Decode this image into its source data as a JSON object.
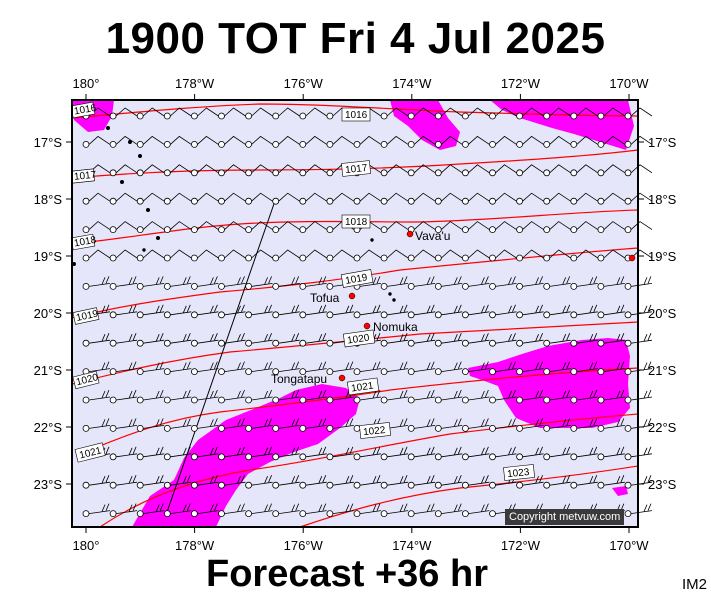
{
  "header": {
    "title": "1900 TOT Fri 4 Jul 2025"
  },
  "footer": {
    "forecast": "Forecast +36 hr",
    "image_code": "IM2",
    "copyright": "Copyright metvuw.com"
  },
  "map": {
    "x_ticks": [
      {
        "lon": 180,
        "label": "180°"
      },
      {
        "lon": 178,
        "label": "178°W"
      },
      {
        "lon": 176,
        "label": "176°W"
      },
      {
        "lon": 174,
        "label": "174°W"
      },
      {
        "lon": 172,
        "label": "172°W"
      },
      {
        "lon": 170,
        "label": "170°W"
      }
    ],
    "y_ticks": [
      {
        "lat": 17,
        "label": "17°S"
      },
      {
        "lat": 18,
        "label": "18°S"
      },
      {
        "lat": 19,
        "label": "19°S"
      },
      {
        "lat": 20,
        "label": "20°S"
      },
      {
        "lat": 21,
        "label": "21°S"
      },
      {
        "lat": 22,
        "label": "22°S"
      },
      {
        "lat": 23,
        "label": "23°S"
      }
    ],
    "isobars": [
      {
        "label": "1016"
      },
      {
        "label": "1016"
      },
      {
        "label": "1017"
      },
      {
        "label": "1017"
      },
      {
        "label": "1018"
      },
      {
        "label": "1018"
      },
      {
        "label": "1019"
      },
      {
        "label": "1019"
      },
      {
        "label": "1020"
      },
      {
        "label": "1020"
      },
      {
        "label": "1021"
      },
      {
        "label": "1021"
      },
      {
        "label": "1022"
      },
      {
        "label": "1023"
      }
    ],
    "places": [
      {
        "name": "Vava'u"
      },
      {
        "name": "Tofua"
      },
      {
        "name": "Nomuka"
      },
      {
        "name": "Tongatapu"
      }
    ],
    "colors": {
      "ocean": "#e6e6fa",
      "rain": "#ff00ff",
      "isobar": "#ff0000",
      "place_dot": "#ff0000"
    }
  }
}
